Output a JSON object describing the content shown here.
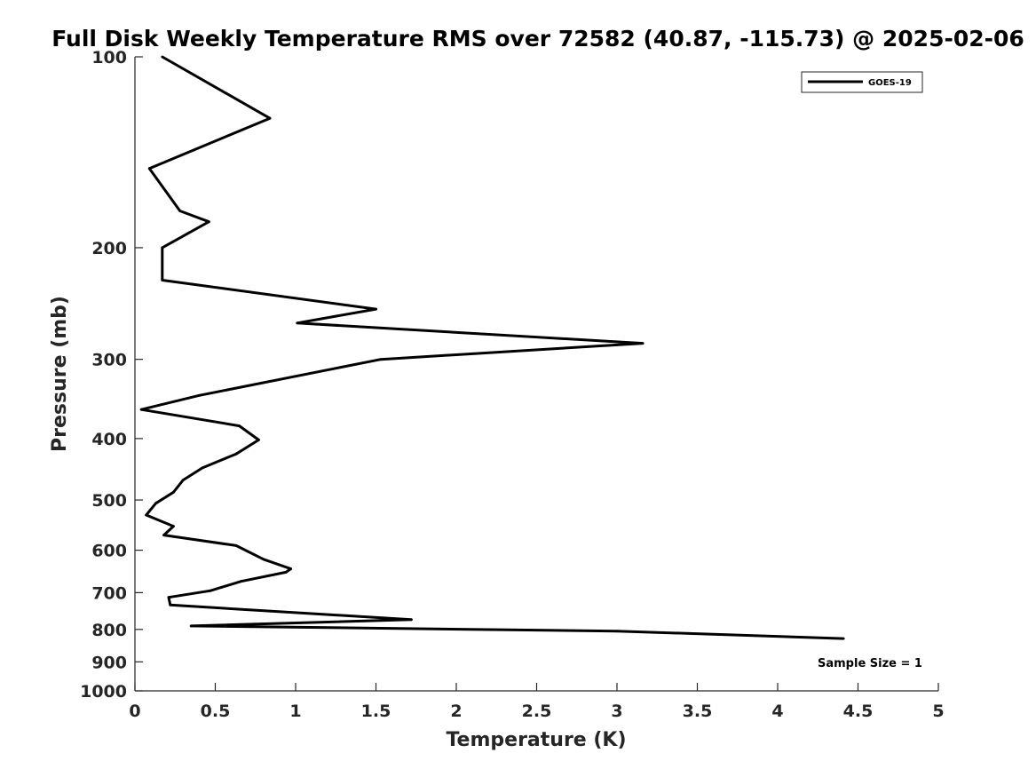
{
  "chart_data": {
    "type": "line",
    "title": "Full Disk Weekly Temperature RMS over 72582 (40.87, -115.73) @ 2025-02-06",
    "xlabel": "Temperature (K)",
    "ylabel": "Pressure (mb)",
    "xlim": [
      0,
      5
    ],
    "ylim": [
      100,
      1000
    ],
    "y_scale": "log",
    "y_reversed": true,
    "grid": false,
    "legend_position": "top-right",
    "x_ticks": [
      "0",
      "0.5",
      "1",
      "1.5",
      "2",
      "2.5",
      "3",
      "3.5",
      "4",
      "4.5",
      "5"
    ],
    "y_ticks": [
      "100",
      "200",
      "300",
      "400",
      "500",
      "600",
      "700",
      "800",
      "900",
      "1000"
    ],
    "series": [
      {
        "name": "GOES-19",
        "color": "#000000",
        "points": [
          [
            0.17,
            100
          ],
          [
            0.84,
            125
          ],
          [
            0.09,
            150
          ],
          [
            0.28,
            175
          ],
          [
            0.46,
            182
          ],
          [
            0.17,
            200
          ],
          [
            0.17,
            225
          ],
          [
            1.5,
            250
          ],
          [
            1.01,
            263
          ],
          [
            3.16,
            283
          ],
          [
            1.53,
            300
          ],
          [
            0.4,
            342
          ],
          [
            0.04,
            360
          ],
          [
            0.65,
            382
          ],
          [
            0.77,
            402
          ],
          [
            0.63,
            423
          ],
          [
            0.42,
            445
          ],
          [
            0.3,
            465
          ],
          [
            0.24,
            486
          ],
          [
            0.13,
            506
          ],
          [
            0.07,
            528
          ],
          [
            0.24,
            550
          ],
          [
            0.18,
            568
          ],
          [
            0.63,
            590
          ],
          [
            0.8,
            620
          ],
          [
            0.97,
            642
          ],
          [
            0.94,
            650
          ],
          [
            0.66,
            672
          ],
          [
            0.47,
            695
          ],
          [
            0.21,
            712
          ],
          [
            0.22,
            732
          ],
          [
            1.72,
            772
          ],
          [
            0.35,
            790
          ],
          [
            3.0,
            805
          ],
          [
            4.41,
            827
          ]
        ]
      }
    ],
    "annotations": [
      "Sample Size = 1"
    ]
  }
}
